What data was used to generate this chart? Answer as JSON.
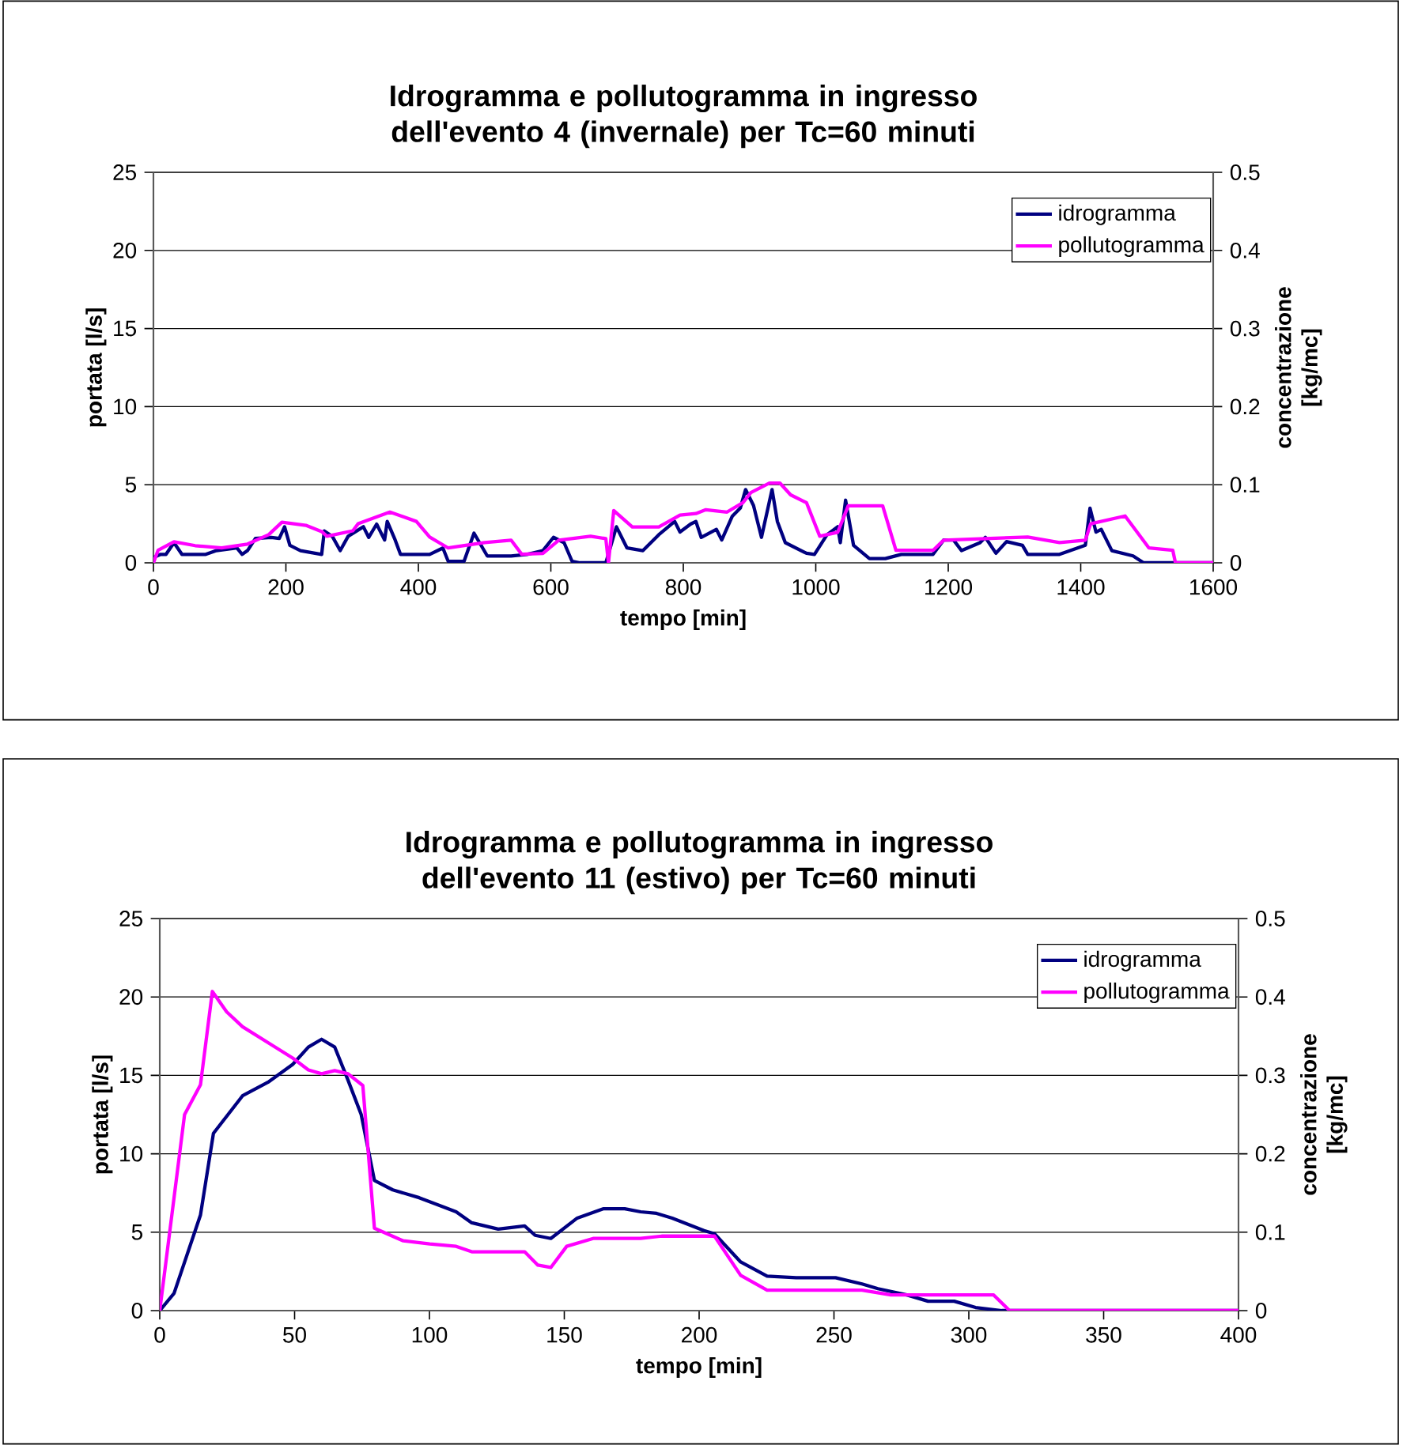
{
  "chart_data": [
    {
      "type": "line",
      "title": "Idrogramma e pollutogramma in ingresso dell'evento 4 (invernale) per Tc=60 minuti",
      "xlabel": "tempo [min]",
      "ylabel": "portata [l/s]",
      "y2label": "concentrazione [kg/mc]",
      "xlim": [
        0,
        1600
      ],
      "xticks": [
        0,
        200,
        400,
        600,
        800,
        1000,
        1200,
        1400,
        1600
      ],
      "ylim": [
        0,
        25
      ],
      "yticks": [
        0,
        5,
        10,
        15,
        20,
        25
      ],
      "y2lim": [
        0,
        0.5
      ],
      "y2ticks": [
        0,
        0.1,
        0.2,
        0.3,
        0.4,
        0.5
      ],
      "grid": "y",
      "legend": "top right",
      "series": [
        {
          "name": "idrogramma",
          "color": "#000080",
          "x": [
            0,
            11,
            19,
            31,
            43,
            79,
            95,
            126,
            134,
            142,
            154,
            178,
            190,
            198,
            206,
            222,
            254,
            258,
            270,
            282,
            294,
            317,
            325,
            337,
            349,
            353,
            365,
            373,
            417,
            437,
            445,
            469,
            484,
            504,
            540,
            564,
            588,
            604,
            620,
            632,
            644,
            683,
            699,
            715,
            739,
            763,
            787,
            795,
            811,
            819,
            827,
            850,
            858,
            874,
            886,
            894,
            906,
            918,
            934,
            942,
            954,
            986,
            998,
            1017,
            1033,
            1037,
            1045,
            1057,
            1081,
            1105,
            1129,
            1177,
            1193,
            1208,
            1220,
            1248,
            1256,
            1272,
            1288,
            1312,
            1320,
            1368,
            1407,
            1414,
            1423,
            1431,
            1447,
            1479,
            1495,
            1600
          ],
          "values": [
            0.34,
            0.54,
            0.54,
            1.29,
            0.54,
            0.54,
            0.78,
            0.95,
            0.54,
            0.78,
            1.56,
            1.63,
            1.56,
            2.31,
            1.12,
            0.78,
            0.54,
            2.04,
            1.7,
            0.78,
            1.7,
            2.31,
            1.63,
            2.48,
            1.46,
            2.65,
            1.46,
            0.54,
            0.54,
            0.95,
            0.1,
            0.1,
            1.9,
            0.44,
            0.44,
            0.54,
            0.78,
            1.63,
            1.29,
            0.1,
            0,
            0,
            2.31,
            0.95,
            0.78,
            1.8,
            2.65,
            1.97,
            2.48,
            2.65,
            1.63,
            2.14,
            1.46,
            2.99,
            3.5,
            4.69,
            3.67,
            1.63,
            4.69,
            2.65,
            1.29,
            0.61,
            0.54,
            1.8,
            2.31,
            1.29,
            4.01,
            1.12,
            0.27,
            0.27,
            0.54,
            0.54,
            1.46,
            1.46,
            0.78,
            1.29,
            1.63,
            0.61,
            1.36,
            1.12,
            0.54,
            0.54,
            1.12,
            3.5,
            1.97,
            2.14,
            0.78,
            0.44,
            0,
            0
          ]
        },
        {
          "name": "pollutogramma",
          "color": "#ff00ff",
          "axis": "y2",
          "x": [
            0,
            7,
            31,
            63,
            103,
            142,
            174,
            194,
            230,
            254,
            262,
            301,
            309,
            357,
            397,
            417,
            445,
            500,
            540,
            556,
            588,
            612,
            660,
            683,
            687,
            695,
            723,
            763,
            795,
            819,
            834,
            866,
            890,
            902,
            930,
            946,
            962,
            986,
            1006,
            1033,
            1049,
            1101,
            1121,
            1177,
            1193,
            1320,
            1368,
            1407,
            1415,
            1467,
            1503,
            1539,
            1543,
            1600
          ],
          "values": [
            0,
            0.016,
            0.027,
            0.022,
            0.019,
            0.024,
            0.036,
            0.052,
            0.048,
            0.04,
            0.034,
            0.041,
            0.05,
            0.065,
            0.053,
            0.033,
            0.019,
            0.026,
            0.029,
            0.011,
            0.012,
            0.029,
            0.034,
            0.031,
            0,
            0.067,
            0.046,
            0.046,
            0.061,
            0.063,
            0.068,
            0.065,
            0.077,
            0.09,
            0.102,
            0.102,
            0.087,
            0.077,
            0.034,
            0.039,
            0.073,
            0.073,
            0.016,
            0.016,
            0.029,
            0.033,
            0.026,
            0.029,
            0.05,
            0.06,
            0.019,
            0.016,
            0,
            0
          ]
        }
      ]
    },
    {
      "type": "line",
      "title": "Idrogramma e pollutogramma in ingresso dell'evento 11 (estivo) per Tc=60 minuti",
      "xlabel": "tempo [min]",
      "ylabel": "portata [l/s]",
      "y2label": "concentrazione [kg/mc]",
      "xlim": [
        0,
        400
      ],
      "xticks": [
        0,
        50,
        100,
        150,
        200,
        250,
        300,
        350,
        400
      ],
      "ylim": [
        0,
        25
      ],
      "yticks": [
        0,
        5,
        10,
        15,
        20,
        25
      ],
      "y2lim": [
        0,
        0.5
      ],
      "y2ticks": [
        0,
        0.1,
        0.2,
        0.3,
        0.4,
        0.5
      ],
      "grid": "y",
      "legend": "top right",
      "series": [
        {
          "name": "idrogramma",
          "color": "#000080",
          "x": [
            0,
            5.3,
            15.1,
            19.9,
            30.7,
            40.5,
            49.3,
            55.1,
            60,
            64.9,
            69.8,
            74.7,
            79.6,
            86.4,
            96.2,
            109.9,
            115.7,
            125.5,
            135.3,
            139.2,
            145,
            154.8,
            164.6,
            172.4,
            178.3,
            184.2,
            190,
            195.9,
            201.8,
            205.7,
            215.4,
            225.2,
            236,
            250.6,
            260.4,
            266.3,
            277,
            284.9,
            294.6,
            302.5,
            312.2,
            400
          ],
          "values": [
            0,
            1.1,
            6.1,
            11.3,
            13.7,
            14.6,
            15.7,
            16.8,
            17.3,
            16.8,
            14.7,
            12.5,
            8.3,
            7.7,
            7.2,
            6.3,
            5.6,
            5.2,
            5.4,
            4.8,
            4.6,
            5.9,
            6.5,
            6.5,
            6.3,
            6.2,
            5.9,
            5.5,
            5.1,
            4.9,
            3.1,
            2.2,
            2.1,
            2.1,
            1.7,
            1.4,
            1,
            0.6,
            0.6,
            0.2,
            0,
            0
          ]
        },
        {
          "name": "pollutogramma",
          "color": "#ff00ff",
          "axis": "y2",
          "x": [
            0,
            9.2,
            15.1,
            19.5,
            24.8,
            30.7,
            40.5,
            49.3,
            55.1,
            60,
            64.9,
            69.8,
            75.3,
            79.6,
            90.3,
            100.1,
            109.9,
            115.7,
            135.3,
            140.2,
            145,
            150.9,
            160.7,
            178.3,
            186.1,
            201.8,
            205.7,
            215.4,
            225.2,
            260.4,
            271.1,
            309.2,
            315.1,
            400
          ],
          "values": [
            0,
            0.25,
            0.288,
            0.407,
            0.381,
            0.362,
            0.341,
            0.322,
            0.307,
            0.302,
            0.306,
            0.302,
            0.287,
            0.105,
            0.089,
            0.085,
            0.082,
            0.075,
            0.075,
            0.058,
            0.055,
            0.082,
            0.092,
            0.092,
            0.095,
            0.095,
            0.095,
            0.045,
            0.026,
            0.026,
            0.02,
            0.02,
            0,
            0
          ]
        }
      ]
    }
  ]
}
